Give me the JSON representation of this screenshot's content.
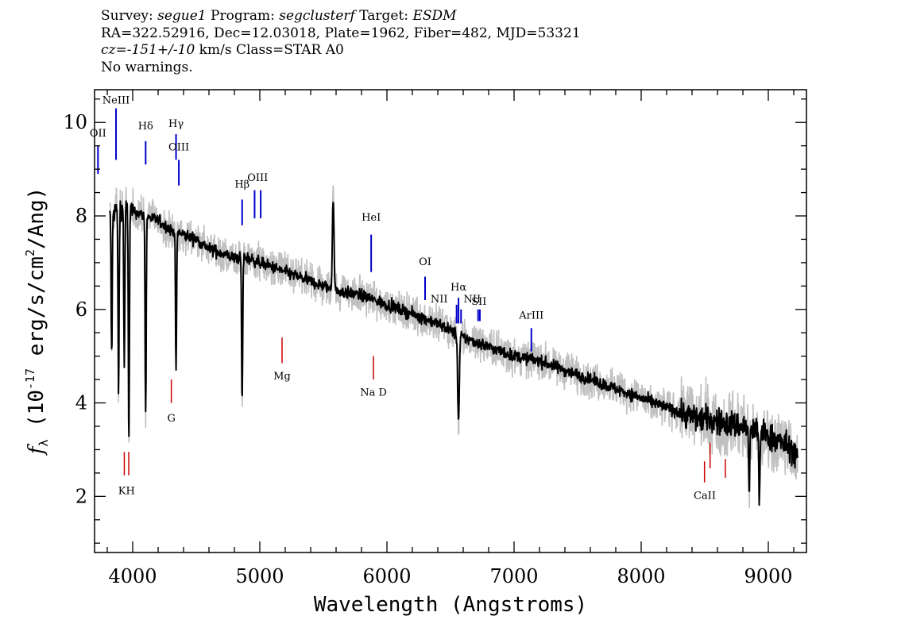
{
  "header": {
    "survey_label": "Survey:",
    "survey": "segue1",
    "program_label": "Program:",
    "program": "segclusterf",
    "target_label": "Target:",
    "target": "ESDM",
    "line2": "RA=322.52916, Dec=12.03018, Plate=1962, Fiber=482, MJD=53321",
    "cz": "cz=-151+/-10",
    "cz_rest": "km/s Class=STAR A0",
    "warnings": "No warnings."
  },
  "chart_data": {
    "type": "line",
    "title": "",
    "xlabel": "Wavelength (Angstroms)",
    "ylabel": "f_λ (10^-17 erg/s/cm^2/Ang)",
    "xlim": [
      3700,
      9300
    ],
    "ylim": [
      0.8,
      10.7
    ],
    "x_ticks": [
      4000,
      5000,
      6000,
      7000,
      8000,
      9000
    ],
    "x_tick_labels": [
      "4000",
      "5000",
      "6000",
      "7000",
      "8000",
      "9000"
    ],
    "y_ticks": [
      2,
      4,
      6,
      8,
      10
    ],
    "y_tick_labels": [
      "2",
      "4",
      "6",
      "8",
      "10"
    ],
    "colors": {
      "flux": "#000000",
      "noise": "#c0c0c0",
      "emission": "#0000cc",
      "absorption": "#cc0000"
    },
    "series": [
      {
        "role": "smoothed flux",
        "continuum": {
          "x": [
            3820,
            3900,
            4000,
            4100,
            4200,
            4300,
            4400,
            4500,
            4600,
            4700,
            4800,
            4900,
            5000,
            5200,
            5400,
            5600,
            5800,
            6000,
            6200,
            6400,
            6600,
            6800,
            7000,
            7200,
            7400,
            7600,
            7800,
            8000,
            8200,
            8400,
            8600,
            8800,
            9000,
            9200,
            9230
          ],
          "y": [
            8.0,
            8.2,
            8.1,
            8.0,
            7.9,
            7.7,
            7.6,
            7.5,
            7.3,
            7.2,
            7.1,
            7.1,
            7.0,
            6.8,
            6.6,
            6.4,
            6.3,
            6.1,
            5.9,
            5.7,
            5.4,
            5.2,
            5.0,
            4.9,
            4.7,
            4.5,
            4.3,
            4.1,
            3.9,
            3.7,
            3.6,
            3.5,
            3.3,
            3.0,
            2.8
          ]
        },
        "features": [
          {
            "x": 3835,
            "y": 5.0
          },
          {
            "x": 3889,
            "y": 4.2
          },
          {
            "x": 3934,
            "y": 4.8
          },
          {
            "x": 3970,
            "y": 3.3
          },
          {
            "x": 4102,
            "y": 3.8
          },
          {
            "x": 4341,
            "y": 4.7
          },
          {
            "x": 4861,
            "y": 4.0
          },
          {
            "x": 5577,
            "y": 8.4
          },
          {
            "x": 6563,
            "y": 3.6
          },
          {
            "x": 8850,
            "y": 2.0
          },
          {
            "x": 8930,
            "y": 1.9
          }
        ]
      }
    ],
    "emission_lines": [
      {
        "label": "OII",
        "x": 3727
      },
      {
        "label": "NeIII",
        "x": 3869
      },
      {
        "label": "Hδ",
        "x": 4102
      },
      {
        "label": "Hγ",
        "x": 4341
      },
      {
        "label": "OIII",
        "x": 4363
      },
      {
        "label": "Hβ",
        "x": 4861
      },
      {
        "label": "OIII",
        "x": 4959
      },
      {
        "label": "OIII",
        "x": 5007
      },
      {
        "label": "HeI",
        "x": 5876
      },
      {
        "label": "OI",
        "x": 6300
      },
      {
        "label": "NII",
        "x": 6548
      },
      {
        "label": "Hα",
        "x": 6563
      },
      {
        "label": "NII",
        "x": 6583
      },
      {
        "label": "SII",
        "x": 6717
      },
      {
        "label": "SII",
        "x": 6731
      },
      {
        "label": "ArIII",
        "x": 7136
      }
    ],
    "absorption_lines": [
      {
        "label": "K",
        "x": 3934
      },
      {
        "label": "H",
        "x": 3969
      },
      {
        "label": "G",
        "x": 4304
      },
      {
        "label": "Mg",
        "x": 5175
      },
      {
        "label": "Na D",
        "x": 5894
      },
      {
        "label": "CaII",
        "x": 8498
      },
      {
        "label": "CaII",
        "x": 8542
      },
      {
        "label": "CaII",
        "x": 8662
      }
    ]
  }
}
